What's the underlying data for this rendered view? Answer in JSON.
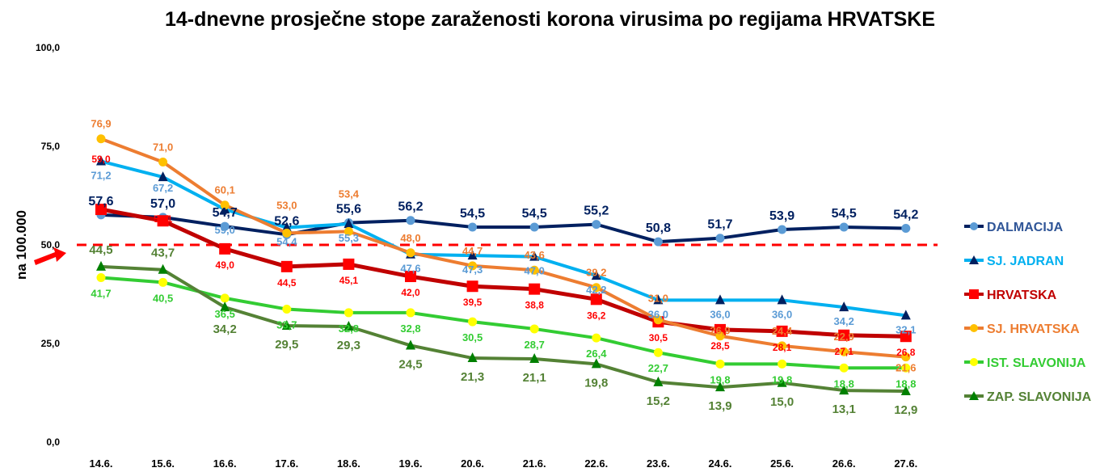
{
  "chart_data": {
    "type": "line",
    "title": "14-dnevne prosječne stope zaraženosti korona virusima po regijama HRVATSKE",
    "ylabel": "na 100.000",
    "xlabel": "",
    "ylim": [
      0,
      100
    ],
    "yticks": [
      "0,0",
      "25,0",
      "50,0",
      "75,0",
      "100,0"
    ],
    "ytick_values": [
      0,
      25,
      50,
      75,
      100
    ],
    "categories": [
      "14.6.",
      "15.6.",
      "16.6.",
      "17.6.",
      "18.6.",
      "19.6.",
      "20.6.",
      "21.6.",
      "22.6.",
      "23.6.",
      "24.6.",
      "25.6.",
      "26.6.",
      "27.6."
    ],
    "reference_line": {
      "value": 50,
      "color": "#ff0000",
      "style": "dashed"
    },
    "legend_position": "right",
    "series": [
      {
        "name": "DALMACIJA",
        "line": "#002060",
        "marker": "#5b9bd5",
        "marker_shape": "circle",
        "label_color": "#002060",
        "legend_color": "#2f5597",
        "values": [
          57.6,
          57.0,
          54.7,
          52.6,
          55.6,
          56.2,
          54.5,
          54.5,
          55.2,
          50.8,
          51.7,
          53.9,
          54.5,
          54.2
        ]
      },
      {
        "name": "SJ. JADRAN",
        "line": "#00b0f0",
        "marker": "#002060",
        "marker_shape": "triangle",
        "label_color": "#5b9bd5",
        "legend_color": "#00b0f0",
        "values": [
          71.2,
          67.2,
          59.0,
          54.4,
          55.3,
          47.6,
          47.3,
          47.0,
          42.2,
          36.0,
          36.0,
          36.0,
          34.2,
          32.1
        ]
      },
      {
        "name": "HRVATSKA",
        "line": "#c00000",
        "marker": "#ff0000",
        "marker_shape": "square",
        "label_color": "#ff0000",
        "legend_color": "#c00000",
        "values": [
          59.0,
          56.1,
          49.0,
          44.5,
          45.1,
          42.0,
          39.5,
          38.8,
          36.2,
          30.5,
          28.5,
          28.1,
          27.1,
          26.8
        ]
      },
      {
        "name": "SJ. HRVATSKA",
        "line": "#ed7d31",
        "marker": "#ffc000",
        "marker_shape": "circle",
        "label_color": "#ed7d31",
        "legend_color": "#ed7d31",
        "values": [
          76.9,
          71.0,
          60.1,
          53.0,
          53.4,
          48.0,
          44.7,
          43.6,
          39.2,
          31.0,
          26.9,
          24.4,
          22.9,
          21.6
        ]
      },
      {
        "name": "IST. SLAVONIJA",
        "line": "#33cc33",
        "marker": "#ffff00",
        "marker_shape": "circle",
        "label_color": "#33cc33",
        "legend_color": "#33cc33",
        "values": [
          41.7,
          40.5,
          36.5,
          33.7,
          32.8,
          32.8,
          30.5,
          28.7,
          26.4,
          22.7,
          19.8,
          19.8,
          18.8,
          18.8
        ]
      },
      {
        "name": "ZAP. SLAVONIJA",
        "line": "#548235",
        "marker": "#008000",
        "marker_shape": "triangle",
        "label_color": "#548235",
        "legend_color": "#548235",
        "values": [
          44.5,
          43.7,
          34.2,
          29.5,
          29.3,
          24.5,
          21.3,
          21.1,
          19.8,
          15.2,
          13.9,
          15.0,
          13.1,
          12.9
        ]
      }
    ]
  }
}
